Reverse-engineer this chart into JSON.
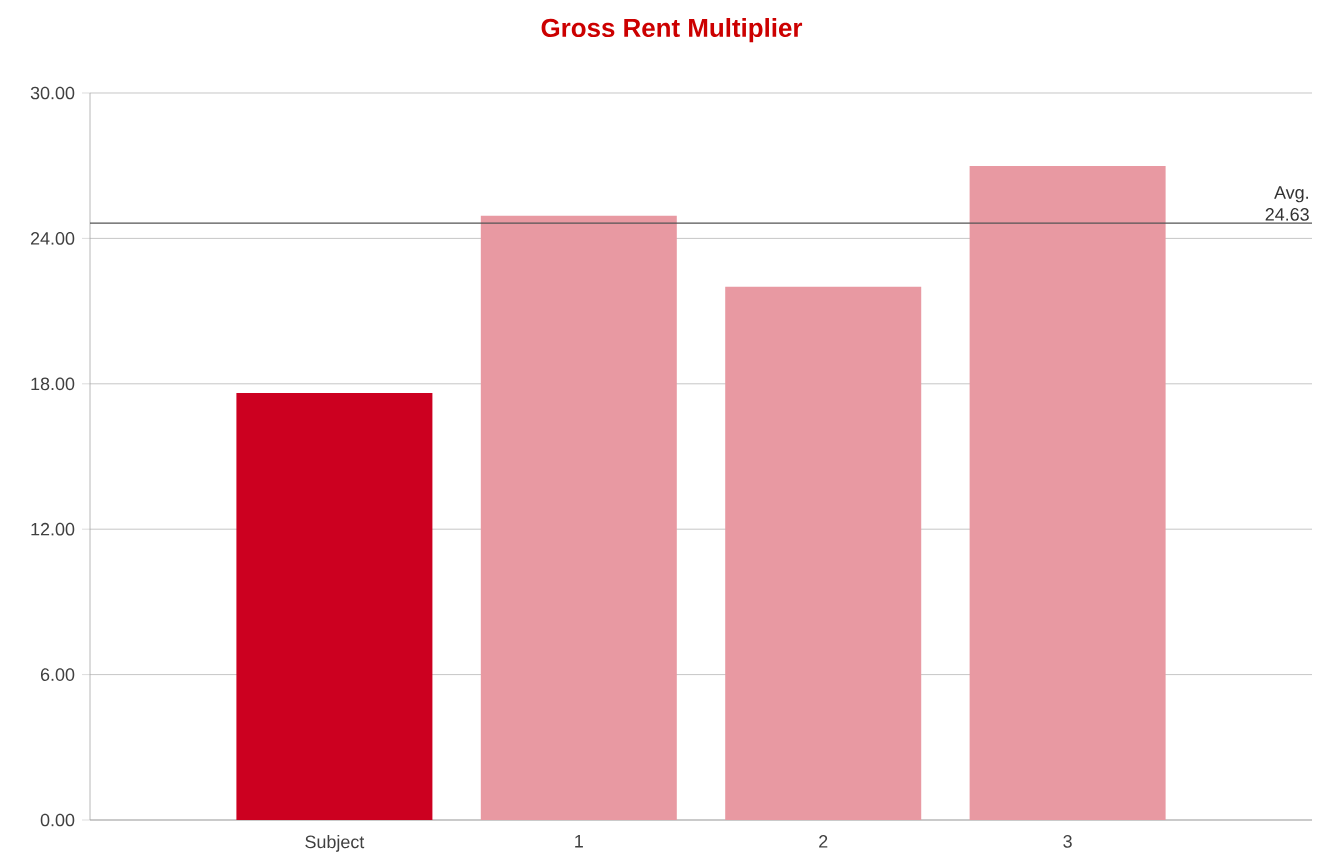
{
  "chart_data": {
    "type": "bar",
    "title": "Gross Rent Multiplier",
    "categories": [
      "Subject",
      "1",
      "2",
      "3"
    ],
    "values": [
      17.62,
      24.93,
      22.0,
      26.99
    ],
    "colors": [
      "#cc0020",
      "#e899a2",
      "#e899a2",
      "#e899a2"
    ],
    "ylim": [
      0,
      30
    ],
    "yticks": [
      {
        "value": 0,
        "label": "0.00"
      },
      {
        "value": 6,
        "label": "6.00"
      },
      {
        "value": 12,
        "label": "12.00"
      },
      {
        "value": 18,
        "label": "18.00"
      },
      {
        "value": 24,
        "label": "24.00"
      },
      {
        "value": 30,
        "label": "30.00"
      }
    ],
    "grid": "y",
    "ref_lines": [
      {
        "axis": "y",
        "value": 24.63,
        "label": "Avg. 24.63",
        "color": "#555555"
      }
    ]
  }
}
